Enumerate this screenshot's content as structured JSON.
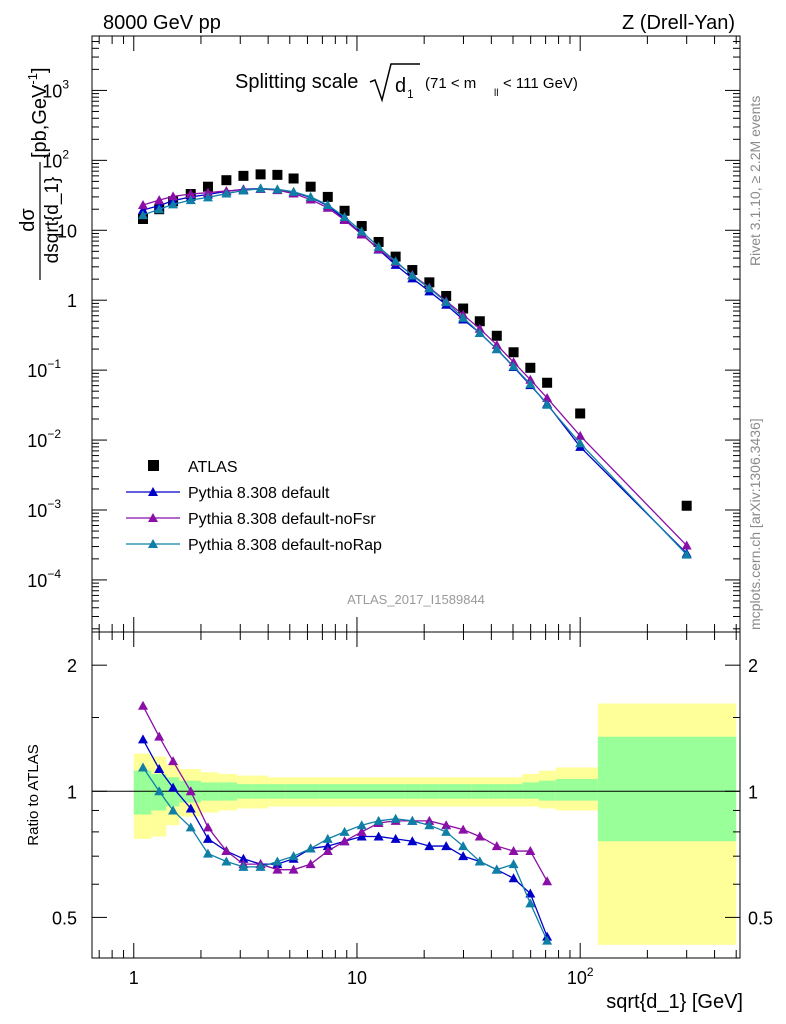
{
  "header": {
    "energy": "8000 GeV pp",
    "process": "Z (Drell-Yan)",
    "plot_title_main": "Splitting scale",
    "plot_title_var": "d",
    "plot_title_sub": "1",
    "plot_title_cuts": "(71 < m",
    "plot_title_cuts_sub": "ll",
    "plot_title_cuts_end": "< 111 GeV)",
    "analysis_id": "ATLAS_2017_I1589844"
  },
  "side_labels": {
    "rivet": "Rivet 3.1.10, ≥ 2.2M events",
    "mcplots": "mcplots.cern.ch [arXiv:1306.3436]"
  },
  "axes": {
    "ylabel_frac_num": "dσ",
    "ylabel_frac_den": "dsqrt{d_1}",
    "ylabel_units": "[pb,GeV",
    "ylabel_units_sup": "-1",
    "ylabel_units_end": "]",
    "ratio_ylabel": "Ratio to ATLAS",
    "xlabel": "sqrt{d_1} [GeV]",
    "x_ticks": [
      {
        "value": 1,
        "label": "1"
      },
      {
        "value": 10,
        "label": "10"
      },
      {
        "value": 100,
        "label": "10",
        "sup": "2"
      }
    ],
    "y_ticks": [
      {
        "value": 1000,
        "base": "10",
        "sup": "3"
      },
      {
        "value": 100,
        "base": "10",
        "sup": "2"
      },
      {
        "value": 10,
        "base": "10",
        "sup": ""
      },
      {
        "value": 1,
        "base": "1",
        "sup": ""
      },
      {
        "value": 0.1,
        "base": "10",
        "sup": "−1"
      },
      {
        "value": 0.01,
        "base": "10",
        "sup": "−2"
      },
      {
        "value": 0.001,
        "base": "10",
        "sup": "−3"
      },
      {
        "value": 0.0001,
        "base": "10",
        "sup": "−4"
      }
    ],
    "ratio_ticks": [
      {
        "value": 2,
        "label": "2"
      },
      {
        "value": 1,
        "label": "1"
      },
      {
        "value": 0.5,
        "label": "0.5"
      }
    ]
  },
  "legend": [
    {
      "label": "ATLAS",
      "color": "#000000",
      "marker": "square"
    },
    {
      "label": "Pythia 8.308 default",
      "color": "#0000c8",
      "marker": "triangle"
    },
    {
      "label": "Pythia 8.308 default-noFsr",
      "color": "#8b0fa6",
      "marker": "triangle"
    },
    {
      "label": "Pythia 8.308 default-noRap",
      "color": "#0f7fa6",
      "marker": "triangle"
    }
  ],
  "chart_data": {
    "type": "scatter",
    "x_scale": "log",
    "y_scale": "log",
    "xlim": [
      0.65,
      520
    ],
    "ylim": [
      1.8e-05,
      6000
    ],
    "ratio_ylim": [
      0.4,
      2.4
    ],
    "ratio_scale": "log",
    "x": [
      1.1,
      1.3,
      1.5,
      1.8,
      2.15,
      2.6,
      3.1,
      3.7,
      4.4,
      5.2,
      6.2,
      7.4,
      8.8,
      10.5,
      12.5,
      14.9,
      17.7,
      21.1,
      25.1,
      29.9,
      35.5,
      42.3,
      50.3,
      59.8,
      71.1,
      100,
      300
    ],
    "series": [
      {
        "name": "ATLAS",
        "color": "#000000",
        "values": [
          14.5,
          20,
          26,
          33,
          42,
          52,
          60,
          63,
          62,
          55,
          42,
          30,
          19,
          11.5,
          6.8,
          4.2,
          2.7,
          1.8,
          1.15,
          0.76,
          0.5,
          0.31,
          0.18,
          0.108,
          0.066,
          0.024,
          0.00115
        ]
      },
      {
        "name": "Pythia 8.308 default",
        "color": "#0000c8",
        "values": [
          19.5,
          22.5,
          26.5,
          30,
          32.5,
          36,
          38.5,
          39.5,
          38,
          35,
          29.5,
          22.5,
          14.5,
          8.9,
          5.3,
          3.2,
          2.05,
          1.34,
          0.86,
          0.53,
          0.34,
          0.2,
          0.111,
          0.061,
          0.033,
          0.008,
          0.00024
        ]
      },
      {
        "name": "Pythia 8.308 default-noFsr",
        "color": "#8b0fa6",
        "values": [
          23,
          27,
          30.5,
          33,
          34.5,
          36.5,
          38,
          39,
          37.5,
          33.5,
          27.5,
          21,
          14,
          8.7,
          5.4,
          3.5,
          2.3,
          1.52,
          0.97,
          0.62,
          0.39,
          0.23,
          0.13,
          0.073,
          0.04,
          0.0115,
          0.00031
        ]
      },
      {
        "name": "Pythia 8.308 default-noRap",
        "color": "#0f7fa6",
        "values": [
          16.5,
          20,
          23.5,
          27,
          29.5,
          33.5,
          37,
          39.5,
          38.5,
          35.5,
          30,
          23,
          15.5,
          9.6,
          5.8,
          3.6,
          2.26,
          1.48,
          0.94,
          0.56,
          0.34,
          0.2,
          0.113,
          0.063,
          0.032,
          0.009,
          0.00023
        ]
      }
    ],
    "ratio_x": [
      1.1,
      1.3,
      1.5,
      1.8,
      2.15,
      2.6,
      3.1,
      3.7,
      4.4,
      5.2,
      6.2,
      7.4,
      8.8,
      10.5,
      12.5,
      14.9,
      17.7,
      21.1,
      25.1,
      29.9,
      35.5,
      42.3,
      50.3,
      59.8,
      71.1
    ],
    "ratio_series": [
      {
        "name": "Pythia 8.308 default",
        "color": "#0000c8",
        "values": [
          1.33,
          1.13,
          1.02,
          0.91,
          0.77,
          0.72,
          0.69,
          0.67,
          0.67,
          0.69,
          0.73,
          0.74,
          0.76,
          0.78,
          0.78,
          0.77,
          0.76,
          0.74,
          0.74,
          0.7,
          0.68,
          0.65,
          0.62,
          0.57,
          0.45
        ]
      },
      {
        "name": "Pythia 8.308 default-noFsr",
        "color": "#8b0fa6",
        "values": [
          1.6,
          1.35,
          1.18,
          1.0,
          0.82,
          0.72,
          0.67,
          0.67,
          0.65,
          0.65,
          0.67,
          0.72,
          0.76,
          0.8,
          0.84,
          0.85,
          0.85,
          0.85,
          0.83,
          0.81,
          0.78,
          0.74,
          0.72,
          0.72,
          0.61
        ]
      },
      {
        "name": "Pythia 8.308 default-noRap",
        "color": "#0f7fa6",
        "values": [
          1.14,
          1.0,
          0.9,
          0.82,
          0.71,
          0.68,
          0.66,
          0.66,
          0.68,
          0.7,
          0.73,
          0.77,
          0.8,
          0.83,
          0.85,
          0.86,
          0.85,
          0.83,
          0.8,
          0.74,
          0.68,
          0.65,
          0.67,
          0.54,
          0.44
        ]
      }
    ],
    "band_edges": [
      1,
      1.2,
      1.4,
      1.6,
      2.0,
      2.4,
      2.9,
      3.4,
      4.0,
      4.8,
      5.7,
      6.8,
      8.1,
      9.7,
      11.5,
      13.7,
      16.3,
      19.4,
      23.1,
      27.5,
      32.7,
      38.9,
      46.2,
      55,
      65.4,
      77.8,
      120,
      500
    ],
    "band_stat_lo": [
      0.88,
      0.9,
      0.92,
      0.94,
      0.95,
      0.95,
      0.96,
      0.96,
      0.96,
      0.96,
      0.96,
      0.96,
      0.96,
      0.96,
      0.96,
      0.96,
      0.96,
      0.96,
      0.96,
      0.96,
      0.96,
      0.96,
      0.96,
      0.96,
      0.95,
      0.95,
      0.76
    ],
    "band_stat_hi": [
      1.12,
      1.1,
      1.08,
      1.06,
      1.05,
      1.05,
      1.04,
      1.04,
      1.04,
      1.04,
      1.04,
      1.04,
      1.04,
      1.04,
      1.04,
      1.04,
      1.04,
      1.04,
      1.04,
      1.04,
      1.04,
      1.04,
      1.04,
      1.05,
      1.06,
      1.07,
      1.35
    ],
    "band_tot_lo": [
      0.77,
      0.78,
      0.83,
      0.87,
      0.89,
      0.9,
      0.91,
      0.91,
      0.92,
      0.92,
      0.92,
      0.92,
      0.92,
      0.92,
      0.92,
      0.92,
      0.92,
      0.92,
      0.92,
      0.92,
      0.92,
      0.92,
      0.92,
      0.92,
      0.91,
      0.9,
      0.43
    ],
    "band_tot_hi": [
      1.23,
      1.21,
      1.16,
      1.13,
      1.11,
      1.1,
      1.09,
      1.09,
      1.08,
      1.08,
      1.08,
      1.08,
      1.08,
      1.08,
      1.08,
      1.08,
      1.08,
      1.08,
      1.08,
      1.08,
      1.08,
      1.08,
      1.08,
      1.1,
      1.12,
      1.14,
      1.62
    ],
    "band_colors": {
      "total": "#ffff99",
      "stat": "#99ff99"
    },
    "grid": false,
    "legend_position": "middle-left"
  }
}
